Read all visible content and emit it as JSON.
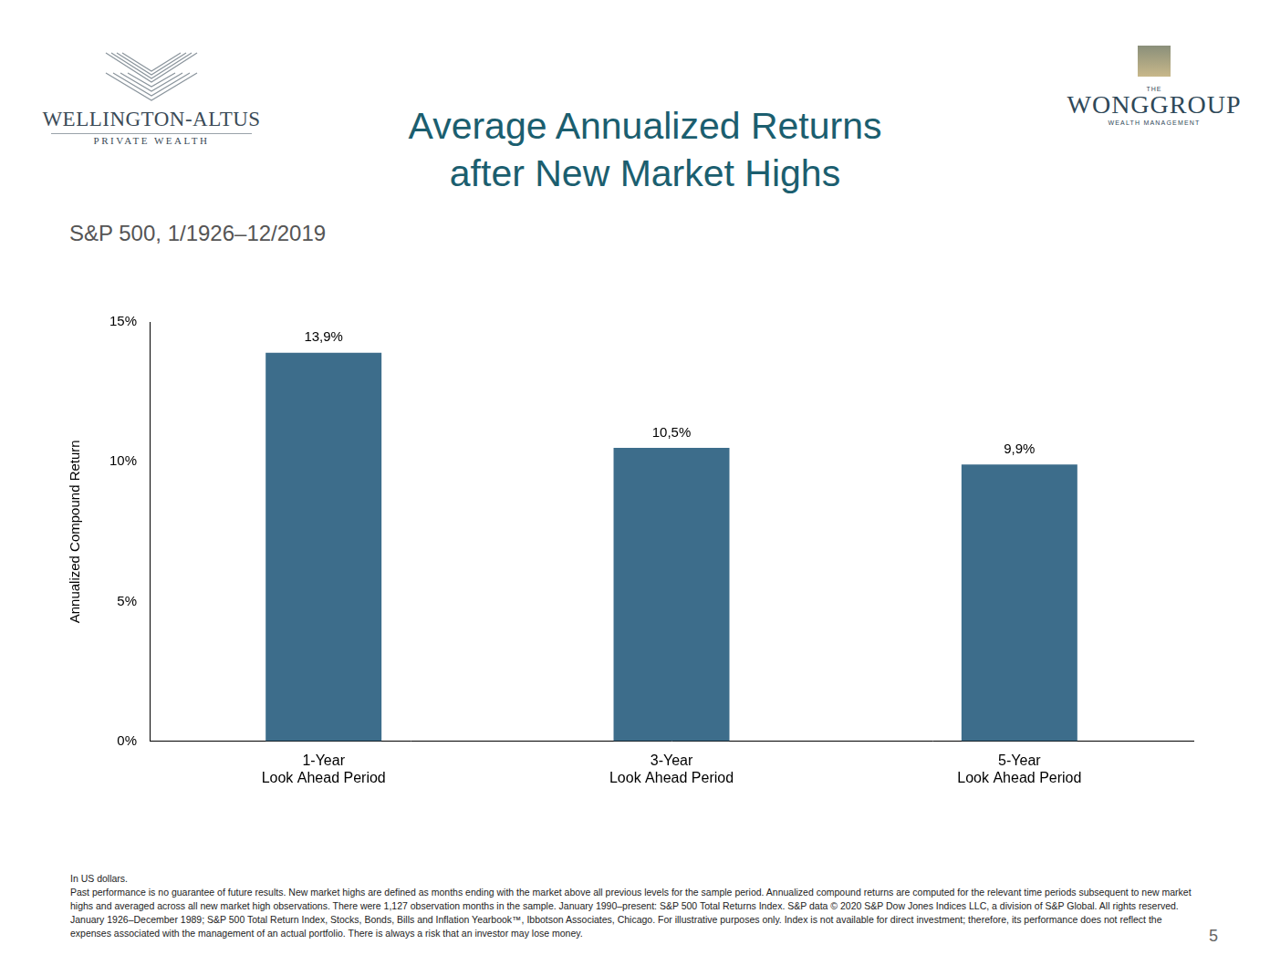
{
  "header": {
    "left_logo": [
      "WELLINGTON-ALTUS",
      "PRIVATE WEALTH"
    ],
    "right_logo": [
      "THE",
      "WONGGROUP",
      "WEALTH MANAGEMENT"
    ]
  },
  "chart_data": {
    "type": "bar",
    "title": [
      "Average Annualized Returns",
      "after New Market Highs"
    ],
    "subtitle": "S&P 500, 1/1926–12/2019",
    "y_label": "Annualized Compound Return",
    "categories": [
      [
        "1-Year",
        "Look Ahead Period"
      ],
      [
        "3-Year",
        "Look Ahead Period"
      ],
      [
        "5-Year",
        "Look Ahead Period"
      ]
    ],
    "values": [
      13.9,
      10.5,
      9.9
    ],
    "value_labels": [
      "13,9%",
      "10,5%",
      "9,9%"
    ],
    "data_labels": true,
    "color": "#3d6d8b",
    "ylim": [
      0,
      15
    ],
    "yticks": [
      {
        "value": 0,
        "label": "0%"
      },
      {
        "value": 5,
        "label": "5%"
      },
      {
        "value": 10,
        "label": "10%"
      },
      {
        "value": 15,
        "label": "15%"
      }
    ],
    "grid": false
  },
  "footnote": [
    "In US dollars.",
    "Past performance is no guarantee of future results. New market highs are defined as months ending with the market above all previous levels for the sample period. Annualized compound returns are computed for the relevant time periods subsequent to new market highs and averaged across all new market high observations. There were 1,127 observation months in the sample. January 1990–present: S&P 500 Total Returns Index. S&P data © 2020 S&P Dow Jones Indices LLC, a division of S&P Global. All rights reserved. January 1926–December 1989; S&P 500 Total Return Index, Stocks, Bonds, Bills and Inflation Yearbook™, Ibbotson Associates, Chicago. For illustrative purposes only. Index is not available for direct investment; therefore, its performance does not reflect the expenses associated with the management of an actual portfolio. There is always a risk that an investor may lose money."
  ],
  "page_number": "5"
}
